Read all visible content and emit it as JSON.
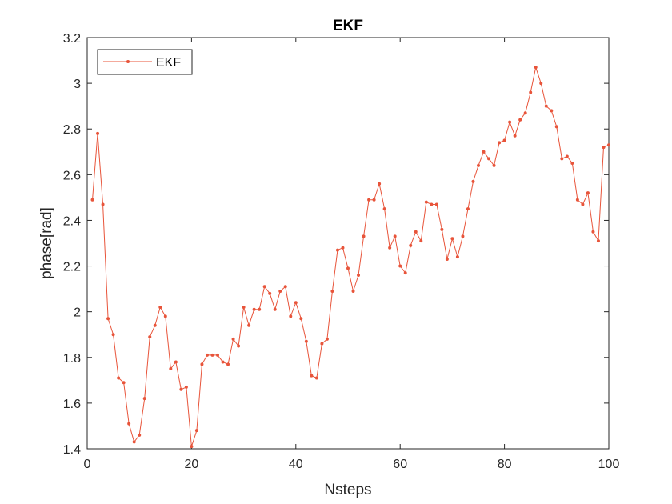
{
  "chart_data": {
    "type": "line",
    "title": "EKF",
    "xlabel": "Nsteps",
    "ylabel": "phase[rad]",
    "xlim": [
      0,
      100
    ],
    "ylim": [
      1.4,
      3.2
    ],
    "xticks": [
      "0",
      "20",
      "40",
      "60",
      "80",
      "100"
    ],
    "yticks": [
      "1.4",
      "1.6",
      "1.8",
      "2",
      "2.2",
      "2.4",
      "2.6",
      "2.8",
      "3",
      "3.2"
    ],
    "grid": false,
    "legend": "top-left",
    "series": [
      {
        "name": "EKF",
        "color": "#e8543a",
        "x": [
          1,
          2,
          3,
          4,
          5,
          6,
          7,
          8,
          9,
          10,
          11,
          12,
          13,
          14,
          15,
          16,
          17,
          18,
          19,
          20,
          21,
          22,
          23,
          24,
          25,
          26,
          27,
          28,
          29,
          30,
          31,
          32,
          33,
          34,
          35,
          36,
          37,
          38,
          39,
          40,
          41,
          42,
          43,
          44,
          45,
          46,
          47,
          48,
          49,
          50,
          51,
          52,
          53,
          54,
          55,
          56,
          57,
          58,
          59,
          60,
          61,
          62,
          63,
          64,
          65,
          66,
          67,
          68,
          69,
          70,
          71,
          72,
          73,
          74,
          75,
          76,
          77,
          78,
          79,
          80,
          81,
          82,
          83,
          84,
          85,
          86,
          87,
          88,
          89,
          90,
          91,
          92,
          93,
          94,
          95,
          96,
          97,
          98,
          99,
          100
        ],
        "values": [
          2.49,
          2.78,
          2.47,
          1.97,
          1.9,
          1.71,
          1.69,
          1.51,
          1.43,
          1.46,
          1.62,
          1.89,
          1.94,
          2.02,
          1.98,
          1.75,
          1.78,
          1.66,
          1.67,
          1.41,
          1.48,
          1.77,
          1.81,
          1.81,
          1.81,
          1.78,
          1.77,
          1.88,
          1.85,
          2.02,
          1.94,
          2.01,
          2.01,
          2.11,
          2.08,
          2.01,
          2.09,
          2.11,
          1.98,
          2.04,
          1.97,
          1.87,
          1.72,
          1.71,
          1.86,
          1.88,
          2.09,
          2.27,
          2.28,
          2.19,
          2.09,
          2.16,
          2.33,
          2.49,
          2.49,
          2.56,
          2.45,
          2.28,
          2.33,
          2.2,
          2.17,
          2.29,
          2.35,
          2.31,
          2.48,
          2.47,
          2.47,
          2.36,
          2.23,
          2.32,
          2.24,
          2.33,
          2.45,
          2.57,
          2.64,
          2.7,
          2.67,
          2.64,
          2.74,
          2.75,
          2.83,
          2.77,
          2.84,
          2.87,
          2.96,
          3.07,
          3.0,
          2.9,
          2.88,
          2.81,
          2.67,
          2.68,
          2.65,
          2.49,
          2.47,
          2.52,
          2.35,
          2.31,
          2.72,
          2.73
        ]
      }
    ]
  }
}
